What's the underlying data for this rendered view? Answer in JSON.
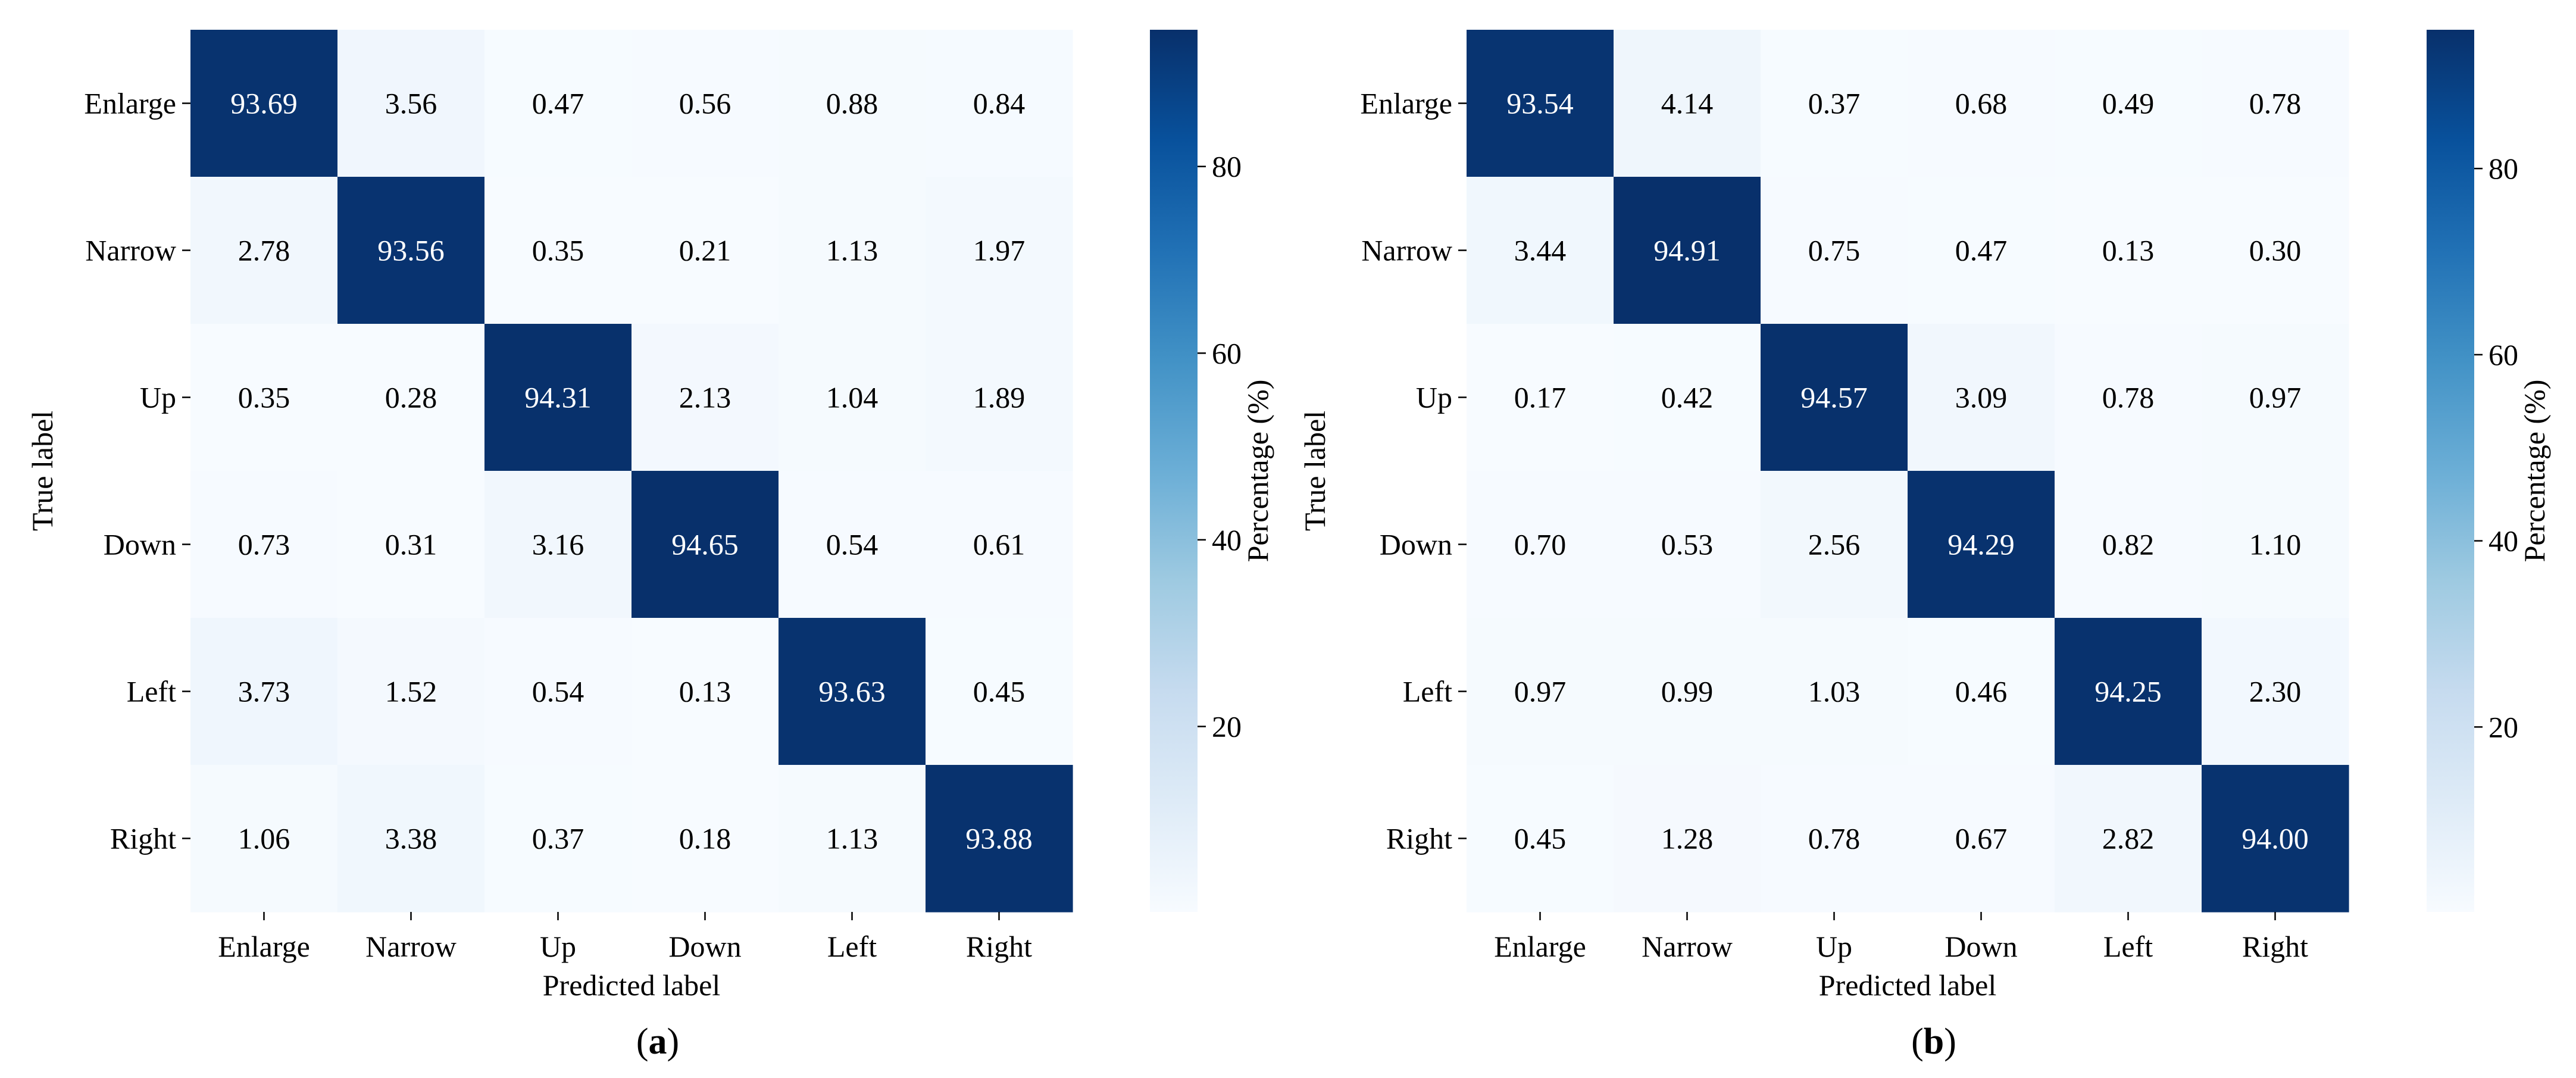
{
  "chart_data": [
    {
      "type": "heatmap",
      "panel_label": "(a)",
      "caption_letter": "a",
      "xlabel": "Predicted label",
      "ylabel": "True label",
      "x_categories": [
        "Enlarge",
        "Narrow",
        "Up",
        "Down",
        "Left",
        "Right"
      ],
      "y_categories": [
        "Enlarge",
        "Narrow",
        "Up",
        "Down",
        "Left",
        "Right"
      ],
      "values": [
        [
          93.69,
          3.56,
          0.47,
          0.56,
          0.88,
          0.84
        ],
        [
          2.78,
          93.56,
          0.35,
          0.21,
          1.13,
          1.97
        ],
        [
          0.35,
          0.28,
          94.31,
          2.13,
          1.04,
          1.89
        ],
        [
          0.73,
          0.31,
          3.16,
          94.65,
          0.54,
          0.61
        ],
        [
          3.73,
          1.52,
          0.54,
          0.13,
          93.63,
          0.45
        ],
        [
          1.06,
          3.38,
          0.37,
          0.18,
          1.13,
          93.88
        ]
      ],
      "colorbar": {
        "label": "Percentage (%)",
        "ticks": [
          20,
          40,
          60,
          80
        ],
        "range": [
          0.13,
          94.65
        ],
        "colormap": "Blues"
      }
    },
    {
      "type": "heatmap",
      "panel_label": "(b)",
      "caption_letter": "b",
      "xlabel": "Predicted label",
      "ylabel": "True label",
      "x_categories": [
        "Enlarge",
        "Narrow",
        "Up",
        "Down",
        "Left",
        "Right"
      ],
      "y_categories": [
        "Enlarge",
        "Narrow",
        "Up",
        "Down",
        "Left",
        "Right"
      ],
      "values": [
        [
          93.54,
          4.14,
          0.37,
          0.68,
          0.49,
          0.78
        ],
        [
          3.44,
          94.91,
          0.75,
          0.47,
          0.13,
          0.3
        ],
        [
          0.17,
          0.42,
          94.57,
          3.09,
          0.78,
          0.97
        ],
        [
          0.7,
          0.53,
          2.56,
          94.29,
          0.82,
          1.1
        ],
        [
          0.97,
          0.99,
          1.03,
          0.46,
          94.25,
          2.3
        ],
        [
          0.45,
          1.28,
          0.78,
          0.67,
          2.82,
          94.0
        ]
      ],
      "colorbar": {
        "label": "Percentage (%)",
        "ticks": [
          20,
          40,
          60,
          80
        ],
        "range": [
          0.13,
          94.91
        ],
        "colormap": "Blues"
      }
    }
  ]
}
